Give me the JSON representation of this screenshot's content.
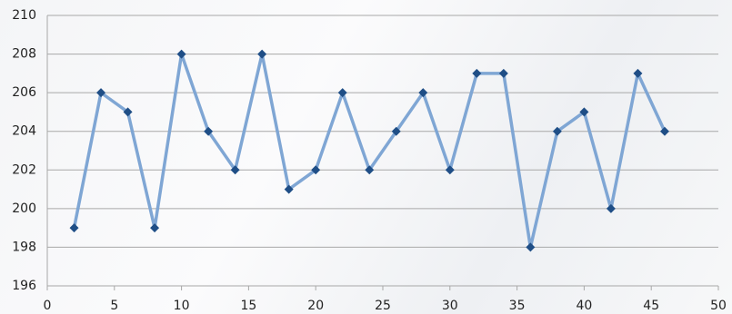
{
  "chart_data": {
    "type": "line",
    "x": [
      2,
      4,
      6,
      8,
      10,
      12,
      14,
      16,
      18,
      20,
      22,
      24,
      26,
      28,
      30,
      32,
      34,
      36,
      38,
      40,
      42,
      44,
      46
    ],
    "values": [
      199,
      206,
      205,
      199,
      208,
      204,
      202,
      208,
      201,
      202,
      206,
      202,
      204,
      206,
      202,
      207,
      207,
      198,
      204,
      205,
      200,
      207,
      204
    ],
    "color": "#7fa6d4",
    "marker_color": "#1f4e86",
    "xlim": [
      0,
      50
    ],
    "xticks": [
      0,
      5,
      10,
      15,
      20,
      25,
      30,
      35,
      40,
      45,
      50
    ],
    "ylim": [
      196,
      210
    ],
    "yticks": [
      196,
      198,
      200,
      202,
      204,
      206,
      208,
      210
    ],
    "grid": true
  }
}
